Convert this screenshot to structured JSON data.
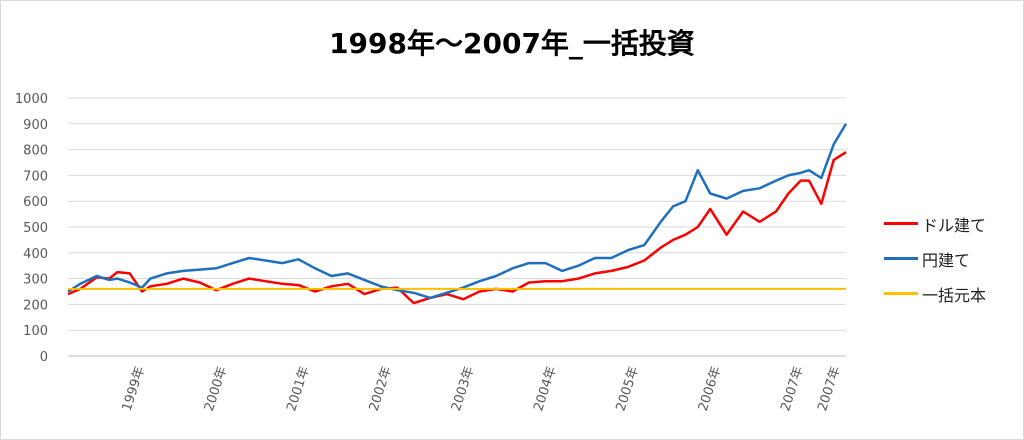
{
  "chart_data": {
    "type": "line",
    "title": "1998年～2007年_一括投資",
    "xlabel": "",
    "ylabel": "",
    "ylim": [
      0,
      1000
    ],
    "yticks": [
      0,
      100,
      200,
      300,
      400,
      500,
      600,
      700,
      800,
      900,
      1000
    ],
    "x_ticks": [
      "1999年",
      "2000年",
      "2001年",
      "2002年",
      "2003年",
      "2004年",
      "2005年",
      "2006年",
      "2007年",
      "2007年"
    ],
    "grid": true,
    "legend_position": "right",
    "series": [
      {
        "name": "ドル建て",
        "color": "#ff0000",
        "x": [
          0,
          0.15,
          0.35,
          0.5,
          0.6,
          0.75,
          0.9,
          1.0,
          1.2,
          1.4,
          1.6,
          1.8,
          2.0,
          2.2,
          2.4,
          2.6,
          2.8,
          3.0,
          3.2,
          3.4,
          3.6,
          3.8,
          4.0,
          4.2,
          4.4,
          4.6,
          4.8,
          5.0,
          5.2,
          5.4,
          5.6,
          5.8,
          6.0,
          6.2,
          6.4,
          6.6,
          6.8,
          7.0,
          7.2,
          7.35,
          7.5,
          7.65,
          7.8,
          8.0,
          8.2,
          8.4,
          8.6,
          8.75,
          8.9,
          9.0,
          9.15,
          9.3,
          9.45
        ],
        "values": [
          240,
          260,
          305,
          300,
          325,
          320,
          250,
          270,
          280,
          300,
          285,
          255,
          280,
          300,
          290,
          280,
          275,
          250,
          270,
          280,
          240,
          260,
          265,
          205,
          225,
          240,
          220,
          250,
          260,
          250,
          285,
          290,
          290,
          300,
          320,
          330,
          345,
          370,
          420,
          450,
          470,
          500,
          570,
          470,
          560,
          520,
          560,
          630,
          680,
          680,
          590,
          760,
          790
        ]
      },
      {
        "name": "円建て",
        "color": "#1f6fbf",
        "x": [
          0,
          0.15,
          0.35,
          0.5,
          0.6,
          0.75,
          0.9,
          1.0,
          1.2,
          1.4,
          1.6,
          1.8,
          2.0,
          2.2,
          2.4,
          2.6,
          2.8,
          3.0,
          3.2,
          3.4,
          3.6,
          3.8,
          4.0,
          4.2,
          4.4,
          4.6,
          4.8,
          5.0,
          5.2,
          5.4,
          5.6,
          5.8,
          6.0,
          6.2,
          6.4,
          6.6,
          6.8,
          7.0,
          7.2,
          7.35,
          7.5,
          7.65,
          7.8,
          8.0,
          8.2,
          8.4,
          8.6,
          8.75,
          8.9,
          9.0,
          9.15,
          9.3,
          9.45
        ],
        "values": [
          250,
          280,
          310,
          295,
          300,
          285,
          265,
          300,
          320,
          330,
          335,
          340,
          360,
          380,
          370,
          360,
          375,
          340,
          310,
          320,
          295,
          270,
          255,
          245,
          225,
          245,
          265,
          290,
          310,
          340,
          360,
          360,
          330,
          350,
          380,
          380,
          410,
          430,
          520,
          580,
          600,
          720,
          630,
          610,
          640,
          650,
          680,
          700,
          710,
          720,
          690,
          820,
          900
        ]
      },
      {
        "name": "一括元本",
        "color": "#ffc000",
        "x": [
          0,
          9.45
        ],
        "values": [
          260,
          260
        ]
      }
    ]
  }
}
